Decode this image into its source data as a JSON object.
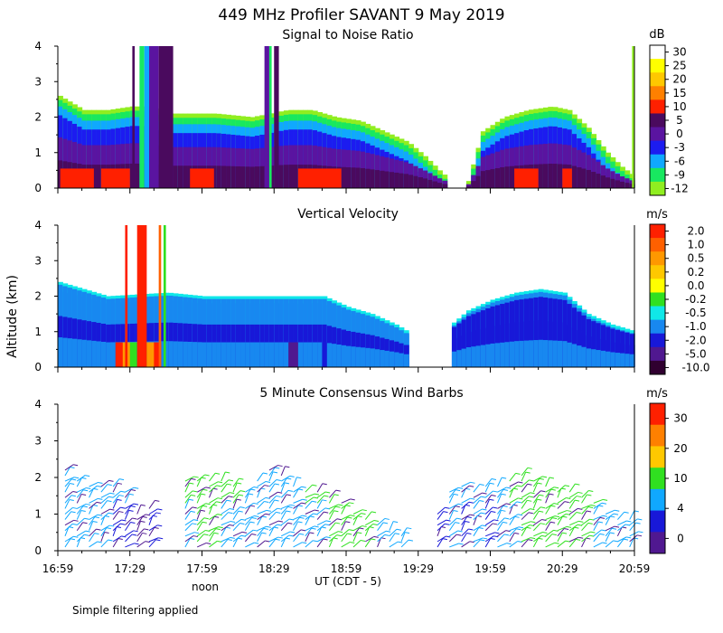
{
  "header": {
    "title": "449 MHz Profiler SAVANT  9 May 2019"
  },
  "footer": {
    "note": "Simple filtering applied"
  },
  "axes": {
    "ylabel": "Altitude (km)",
    "xlabel": "UT  (CDT - 5)",
    "noon_label": "noon",
    "yticks": [
      "0",
      "1",
      "2",
      "3",
      "4"
    ],
    "xticks": [
      "16:59",
      "17:29",
      "17:59",
      "18:29",
      "18:59",
      "19:29",
      "19:59",
      "20:29",
      "20:59"
    ]
  },
  "chart_data": [
    {
      "type": "heatmap",
      "title": "Signal to Noise Ratio",
      "units": "dB",
      "xlim": [
        0,
        240
      ],
      "ylim": [
        0,
        4
      ],
      "colorbar_labels": [
        "30",
        "25",
        "20",
        "15",
        "10",
        "5",
        "0",
        "-3",
        "-6",
        "-9",
        "-12"
      ],
      "colorbar_colors": [
        "#ffffff",
        "#ffff00",
        "#ffc800",
        "#ff8000",
        "#ff2000",
        "#4a0a5e",
        "#5a14a0",
        "#1c1cf0",
        "#10a8ff",
        "#18e860",
        "#90ee20"
      ],
      "top_profile": [
        [
          0,
          2.6
        ],
        [
          10,
          2.2
        ],
        [
          20,
          2.2
        ],
        [
          30,
          2.3
        ],
        [
          38,
          2.3
        ],
        [
          45,
          2.1
        ],
        [
          55,
          2.1
        ],
        [
          65,
          2.1
        ],
        [
          80,
          2.0
        ],
        [
          95,
          2.2
        ],
        [
          105,
          2.2
        ],
        [
          115,
          2.0
        ],
        [
          125,
          1.9
        ],
        [
          135,
          1.6
        ],
        [
          145,
          1.3
        ],
        [
          152,
          0.9
        ],
        [
          158,
          0.5
        ],
        [
          163,
          0.2
        ],
        [
          170,
          0.2
        ],
        [
          176,
          1.6
        ],
        [
          185,
          2.0
        ],
        [
          195,
          2.2
        ],
        [
          205,
          2.3
        ],
        [
          212,
          2.2
        ],
        [
          220,
          1.7
        ],
        [
          228,
          1.0
        ],
        [
          234,
          0.6
        ],
        [
          238,
          0.4
        ],
        [
          240,
          1.5
        ]
      ],
      "gap_minutes": [
        [
          162,
          170
        ]
      ],
      "tall_columns": [
        {
          "from": 31,
          "to": 32,
          "color": "#4a0a5e"
        },
        {
          "from": 34,
          "to": 36,
          "color": "#18e860"
        },
        {
          "from": 36,
          "to": 38,
          "color": "#10a8ff"
        },
        {
          "from": 38,
          "to": 42,
          "color": "#5a14a0"
        },
        {
          "from": 42,
          "to": 48,
          "color": "#4a0a5e"
        },
        {
          "from": 86,
          "to": 88,
          "color": "#5a14a0"
        },
        {
          "from": 88,
          "to": 89,
          "color": "#18e860"
        },
        {
          "from": 90,
          "to": 92,
          "color": "#4a0a5e"
        },
        {
          "from": 239,
          "to": 240,
          "color": "#90ee20"
        }
      ],
      "low_patches": [
        {
          "from": 1,
          "to": 15,
          "color": "#ff2000"
        },
        {
          "from": 18,
          "to": 30,
          "color": "#ff2000"
        },
        {
          "from": 55,
          "to": 65,
          "color": "#ff2000"
        },
        {
          "from": 100,
          "to": 118,
          "color": "#ff2000"
        },
        {
          "from": 190,
          "to": 200,
          "color": "#ff2000"
        },
        {
          "from": 210,
          "to": 214,
          "color": "#ff2000"
        }
      ]
    },
    {
      "type": "heatmap",
      "title": "Vertical Velocity",
      "units": "m/s",
      "xlim": [
        0,
        240
      ],
      "ylim": [
        0,
        4
      ],
      "colorbar_labels": [
        "2.0",
        "1.0",
        "0.5",
        "0.2",
        "0.0",
        "-0.2",
        "-0.5",
        "-1.0",
        "-2.0",
        "-5.0",
        "-10.0"
      ],
      "colorbar_colors": [
        "#ff2000",
        "#ff6000",
        "#ff9800",
        "#ffc800",
        "#ffff00",
        "#30e020",
        "#10e8e8",
        "#1888f0",
        "#1818d8",
        "#501890",
        "#300030"
      ],
      "top_profile": [
        [
          0,
          2.4
        ],
        [
          20,
          2.0
        ],
        [
          45,
          2.1
        ],
        [
          60,
          2.0
        ],
        [
          80,
          2.0
        ],
        [
          100,
          2.0
        ],
        [
          110,
          2.0
        ],
        [
          120,
          1.7
        ],
        [
          130,
          1.5
        ],
        [
          140,
          1.2
        ],
        [
          145,
          1.0
        ],
        [
          150,
          0.9
        ],
        [
          152,
          0.2
        ],
        [
          162,
          0.0
        ],
        [
          163,
          1.2
        ],
        [
          170,
          1.6
        ],
        [
          180,
          1.9
        ],
        [
          190,
          2.1
        ],
        [
          200,
          2.2
        ],
        [
          210,
          2.1
        ],
        [
          220,
          1.5
        ],
        [
          230,
          1.2
        ],
        [
          240,
          1.0
        ]
      ],
      "gap_minutes": [
        [
          146,
          163
        ]
      ],
      "tall_columns": [
        {
          "from": 28,
          "to": 29,
          "color": "#ff2000"
        },
        {
          "from": 33,
          "to": 37,
          "color": "#ff2000"
        },
        {
          "from": 42,
          "to": 43,
          "color": "#ff6000"
        },
        {
          "from": 44,
          "to": 45,
          "color": "#30e020"
        }
      ],
      "low_patches": [
        {
          "from": 24,
          "to": 43,
          "color": "#ff2000"
        },
        {
          "from": 27,
          "to": 40,
          "color": "#ff9800"
        },
        {
          "from": 30,
          "to": 37,
          "color": "#30e020"
        },
        {
          "from": 33,
          "to": 35,
          "color": "#1818d8"
        },
        {
          "from": 96,
          "to": 100,
          "color": "#501890"
        },
        {
          "from": 110,
          "to": 112,
          "color": "#1818d8"
        }
      ]
    },
    {
      "type": "wind-barbs",
      "title": "5 Minute Consensus Wind Barbs",
      "units": "m/s",
      "xlim": [
        0,
        240
      ],
      "ylim": [
        0,
        4
      ],
      "colorbar_labels": [
        "30",
        "20",
        "10",
        "4",
        "0"
      ],
      "colorbar_colors": [
        "#ff2000",
        "#ff8000",
        "#ffc800",
        "#30e020",
        "#10a8ff",
        "#1818d8",
        "#501890"
      ],
      "columns_minutes": [
        3,
        8,
        13,
        18,
        23,
        28,
        33,
        38,
        53,
        58,
        63,
        68,
        73,
        78,
        83,
        88,
        93,
        98,
        103,
        108,
        113,
        118,
        123,
        128,
        133,
        138,
        143,
        158,
        163,
        168,
        173,
        178,
        183,
        188,
        193,
        198,
        203,
        208,
        213,
        218,
        223,
        228,
        233,
        238
      ],
      "column_tops_km": [
        2.2,
        1.9,
        1.8,
        1.8,
        1.8,
        1.7,
        1.1,
        1.2,
        2.0,
        2.0,
        2.0,
        1.9,
        1.8,
        1.7,
        1.9,
        2.2,
        2.1,
        1.8,
        1.6,
        1.6,
        1.5,
        1.3,
        1.0,
        0.9,
        0.8,
        0.7,
        0.4,
        1.1,
        1.6,
        1.8,
        1.7,
        1.8,
        1.8,
        2.0,
        2.1,
        1.9,
        1.8,
        1.7,
        1.6,
        1.5,
        1.3,
        1.1,
        0.9,
        0.9
      ],
      "column_speeds_ms": [
        4,
        6,
        5,
        4,
        3,
        2,
        1,
        2,
        8,
        10,
        10,
        9,
        8,
        6,
        7,
        5,
        4,
        6,
        8,
        9,
        10,
        11,
        12,
        10,
        8,
        6,
        4,
        3,
        4,
        3,
        5,
        3,
        6,
        9,
        11,
        12,
        13,
        12,
        11,
        10,
        9,
        8,
        7,
        6
      ]
    }
  ]
}
